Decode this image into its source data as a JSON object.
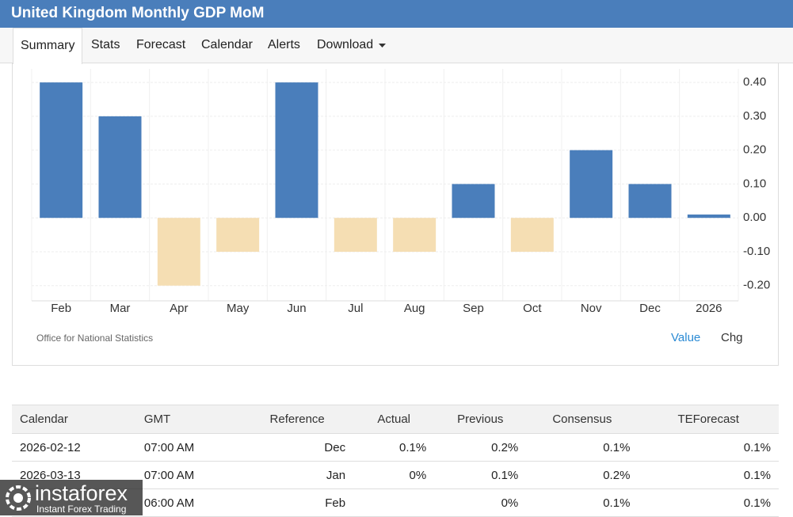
{
  "header": {
    "title": "United Kingdom Monthly GDP MoM"
  },
  "tabs": [
    "Summary",
    "Stats",
    "Forecast",
    "Calendar",
    "Alerts",
    "Download"
  ],
  "chart_data": {
    "type": "bar",
    "categories": [
      "Feb",
      "Mar",
      "Apr",
      "May",
      "Jun",
      "Jul",
      "Aug",
      "Sep",
      "Oct",
      "Nov",
      "Dec",
      "2026"
    ],
    "values": [
      0.4,
      0.3,
      -0.2,
      -0.1,
      0.4,
      -0.1,
      -0.1,
      0.1,
      -0.1,
      0.2,
      0.1,
      0.01
    ],
    "color_positive": "#4a7ebb",
    "color_negative": "#f5deb3",
    "ylim": [
      -0.245,
      0.44
    ],
    "yticks": [
      {
        "value": 0.4,
        "label": "0.40"
      },
      {
        "value": 0.3,
        "label": "0.30"
      },
      {
        "value": 0.2,
        "label": "0.20"
      },
      {
        "value": 0.1,
        "label": "0.10"
      },
      {
        "value": 0,
        "label": "0.00"
      },
      {
        "value": -0.1,
        "label": "-0.10"
      },
      {
        "value": -0.2,
        "label": "-0.20"
      }
    ],
    "grid": true,
    "source": "Office for National Statistics",
    "toggles": [
      "Value",
      "Chg"
    ]
  },
  "table": {
    "columns": [
      "Calendar",
      "GMT",
      "Reference",
      "Actual",
      "Previous",
      "Consensus",
      "TEForecast"
    ],
    "rows": [
      [
        "2026-02-12",
        "07:00 AM",
        "Dec",
        "0.1%",
        "0.2%",
        "0.1%",
        "0.1%"
      ],
      [
        "2026-03-13",
        "07:00 AM",
        "Jan",
        "0%",
        "0.1%",
        "0.2%",
        "0.1%"
      ],
      [
        null,
        "06:00 AM",
        "Feb",
        null,
        "0%",
        "0.1%",
        "0.1%"
      ]
    ]
  },
  "watermark": {
    "brand": "instaforex",
    "tagline": "Instant Forex Trading"
  }
}
